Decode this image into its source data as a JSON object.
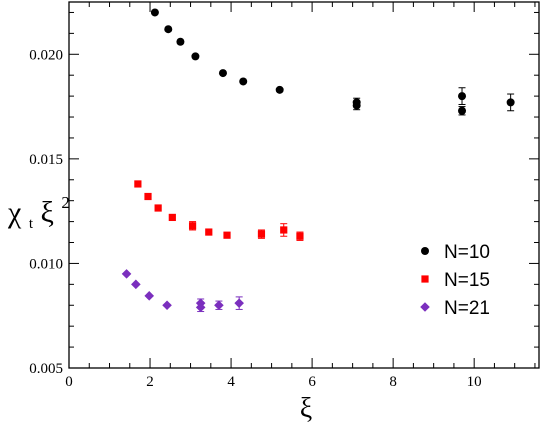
{
  "chart_data": {
    "type": "scatter",
    "xlabel": "ξ",
    "ylabel": {
      "base": "χ",
      "subscript": "t",
      "mid": "ξ",
      "superscript": "2"
    },
    "xlim": [
      0,
      11.6
    ],
    "ylim": [
      0.005,
      0.0225
    ],
    "xticks": [
      0,
      2,
      4,
      6,
      8,
      10
    ],
    "yticks": [
      0.005,
      0.01,
      0.015,
      0.02
    ],
    "xtick_labels": [
      "0",
      "2",
      "4",
      "6",
      "8",
      "10"
    ],
    "ytick_labels": [
      "0.005",
      "0.010",
      "0.015",
      "0.020"
    ],
    "grid": false,
    "legend_position": "right-middle",
    "series": [
      {
        "name": "N=10",
        "marker": "circle",
        "color": "#000000",
        "points": [
          {
            "x": 2.12,
            "y": 0.022,
            "err": 0
          },
          {
            "x": 2.45,
            "y": 0.0212,
            "err": 0
          },
          {
            "x": 2.75,
            "y": 0.0206,
            "err": 0
          },
          {
            "x": 3.12,
            "y": 0.0199,
            "err": 0
          },
          {
            "x": 3.8,
            "y": 0.0191,
            "err": 0
          },
          {
            "x": 4.3,
            "y": 0.0187,
            "err": 0
          },
          {
            "x": 5.2,
            "y": 0.0183,
            "err": 0
          },
          {
            "x": 7.1,
            "y": 0.01755,
            "err": 0.0002
          },
          {
            "x": 7.1,
            "y": 0.0177,
            "err": 0.0002
          },
          {
            "x": 9.7,
            "y": 0.018,
            "err": 0.0004
          },
          {
            "x": 9.7,
            "y": 0.0173,
            "err": 0.0002
          },
          {
            "x": 10.9,
            "y": 0.0177,
            "err": 0.0004
          }
        ]
      },
      {
        "name": "N=15",
        "marker": "square",
        "color": "#ff0000",
        "points": [
          {
            "x": 1.7,
            "y": 0.0138,
            "err": 0
          },
          {
            "x": 1.95,
            "y": 0.0132,
            "err": 0
          },
          {
            "x": 2.2,
            "y": 0.01265,
            "err": 0
          },
          {
            "x": 2.55,
            "y": 0.0122,
            "err": 0
          },
          {
            "x": 3.05,
            "y": 0.0118,
            "err": 0.0002
          },
          {
            "x": 3.45,
            "y": 0.0115,
            "err": 0
          },
          {
            "x": 3.9,
            "y": 0.01135,
            "err": 0
          },
          {
            "x": 4.75,
            "y": 0.0114,
            "err": 0.0002
          },
          {
            "x": 5.3,
            "y": 0.0116,
            "err": 0.0003
          },
          {
            "x": 5.7,
            "y": 0.0113,
            "err": 0.0002
          }
        ]
      },
      {
        "name": "N=21",
        "marker": "diamond",
        "color": "#7b2fbe",
        "points": [
          {
            "x": 1.42,
            "y": 0.0095,
            "err": 0
          },
          {
            "x": 1.65,
            "y": 0.009,
            "err": 0
          },
          {
            "x": 1.98,
            "y": 0.00845,
            "err": 0
          },
          {
            "x": 2.42,
            "y": 0.008,
            "err": 0
          },
          {
            "x": 3.25,
            "y": 0.0081,
            "err": 0.0002
          },
          {
            "x": 3.25,
            "y": 0.0079,
            "err": 0.0002
          },
          {
            "x": 3.7,
            "y": 0.008,
            "err": 0.0002
          },
          {
            "x": 4.2,
            "y": 0.0081,
            "err": 0.0003
          }
        ]
      }
    ]
  }
}
